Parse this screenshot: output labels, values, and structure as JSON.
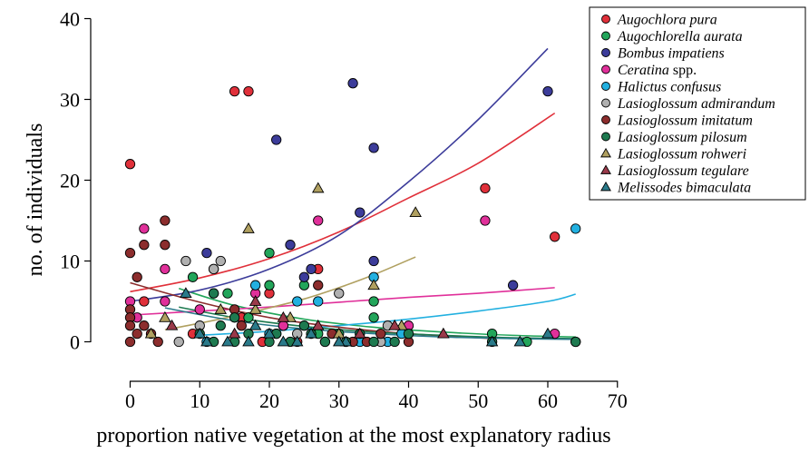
{
  "chart_data": {
    "type": "scatter",
    "xlabel": "proportion native vegetation at the most explanatory radius",
    "ylabel": "no. of individuals",
    "xlim": [
      -5,
      70
    ],
    "ylim": [
      -3,
      40
    ],
    "xticks": [
      0,
      10,
      20,
      30,
      40,
      50,
      60,
      70
    ],
    "yticks": [
      0,
      10,
      20,
      30,
      40
    ],
    "grid": false,
    "legend_position": "top-right",
    "series": [
      {
        "name": "Augochlora pura",
        "name_suffix": "",
        "color": "#e0303a",
        "marker": "circle",
        "points": [
          [
            0,
            22
          ],
          [
            15,
            31
          ],
          [
            17,
            31
          ],
          [
            51,
            19
          ],
          [
            61,
            13
          ],
          [
            20,
            6
          ],
          [
            27,
            9
          ],
          [
            16,
            3
          ],
          [
            2,
            5
          ],
          [
            9,
            1
          ],
          [
            19,
            0
          ],
          [
            24,
            0
          ]
        ],
        "fit": [
          [
            0,
            6.2
          ],
          [
            10,
            7.9
          ],
          [
            20,
            10.3
          ],
          [
            30,
            13.6
          ],
          [
            40,
            17.8
          ],
          [
            50,
            22.1
          ],
          [
            61,
            28.3
          ]
        ]
      },
      {
        "name": "Augochlorella aurata",
        "name_suffix": "",
        "color": "#22a55a",
        "marker": "circle",
        "points": [
          [
            9,
            8
          ],
          [
            20,
            11
          ],
          [
            17,
            3
          ],
          [
            20,
            7
          ],
          [
            25,
            7
          ],
          [
            35,
            5
          ],
          [
            35,
            3
          ],
          [
            52,
            1
          ],
          [
            57,
            0
          ],
          [
            64,
            0
          ],
          [
            12,
            6
          ],
          [
            14,
            6
          ],
          [
            22,
            2
          ],
          [
            27,
            1
          ],
          [
            30,
            1
          ]
        ],
        "fit": [
          [
            7,
            6.6
          ],
          [
            15,
            4.5
          ],
          [
            25,
            2.8
          ],
          [
            35,
            1.8
          ],
          [
            45,
            1.2
          ],
          [
            55,
            0.8
          ],
          [
            64,
            0.6
          ]
        ]
      },
      {
        "name": "Bombus impatiens",
        "name_suffix": "",
        "color": "#3c3c9a",
        "marker": "circle",
        "points": [
          [
            32,
            32
          ],
          [
            21,
            25
          ],
          [
            35,
            24
          ],
          [
            60,
            31
          ],
          [
            23,
            12
          ],
          [
            11,
            11
          ],
          [
            12,
            9
          ],
          [
            25,
            8
          ],
          [
            26,
            9
          ],
          [
            33,
            16
          ],
          [
            35,
            10
          ],
          [
            55,
            7
          ]
        ],
        "fit": [
          [
            0,
            5.0
          ],
          [
            10,
            6.4
          ],
          [
            20,
            9.0
          ],
          [
            30,
            13.2
          ],
          [
            40,
            19.8
          ],
          [
            50,
            27.5
          ],
          [
            60,
            36.3
          ]
        ]
      },
      {
        "name": "Ceratina",
        "name_suffix": " spp.",
        "color": "#e0309a",
        "marker": "circle",
        "points": [
          [
            2,
            14
          ],
          [
            5,
            9
          ],
          [
            5,
            5
          ],
          [
            27,
            15
          ],
          [
            51,
            15
          ],
          [
            61,
            1
          ],
          [
            40,
            2
          ],
          [
            0,
            5
          ],
          [
            1,
            3
          ],
          [
            18,
            6
          ],
          [
            22,
            2
          ],
          [
            10,
            4
          ]
        ],
        "fit": [
          [
            0,
            3.3
          ],
          [
            10,
            3.8
          ],
          [
            20,
            4.3
          ],
          [
            30,
            4.9
          ],
          [
            40,
            5.5
          ],
          [
            50,
            6.0
          ],
          [
            61,
            6.7
          ]
        ]
      },
      {
        "name": "Halictus confusus",
        "name_suffix": "",
        "color": "#22b0e0",
        "marker": "circle",
        "points": [
          [
            64,
            14
          ],
          [
            35,
            8
          ],
          [
            18,
            7
          ],
          [
            24,
            5
          ],
          [
            27,
            5
          ],
          [
            11,
            0
          ],
          [
            33,
            0
          ],
          [
            37,
            0
          ],
          [
            39,
            1
          ],
          [
            20,
            1
          ]
        ],
        "fit": [
          [
            10,
            0.8
          ],
          [
            20,
            1.3
          ],
          [
            30,
            2.0
          ],
          [
            40,
            2.8
          ],
          [
            50,
            3.8
          ],
          [
            60,
            5.0
          ],
          [
            64,
            5.9
          ]
        ]
      },
      {
        "name": "Lasioglossum admirandum",
        "name_suffix": "",
        "color": "#b0b0b0",
        "marker": "circle",
        "points": [
          [
            8,
            10
          ],
          [
            13,
            10
          ],
          [
            12,
            9
          ],
          [
            30,
            6
          ],
          [
            37,
            2
          ],
          [
            7,
            0
          ],
          [
            10,
            2
          ],
          [
            24,
            1
          ],
          [
            36,
            0
          ]
        ],
        "fit": []
      },
      {
        "name": "Lasioglossum imitatum",
        "name_suffix": "",
        "color": "#8c2d2d",
        "marker": "circle",
        "points": [
          [
            0,
            11
          ],
          [
            1,
            8
          ],
          [
            5,
            15
          ],
          [
            5,
            12
          ],
          [
            2,
            12
          ],
          [
            0,
            4
          ],
          [
            0,
            3
          ],
          [
            0,
            2
          ],
          [
            1,
            1
          ],
          [
            2,
            2
          ],
          [
            3,
            1
          ],
          [
            4,
            0
          ],
          [
            0,
            0
          ],
          [
            15,
            4
          ],
          [
            16,
            2
          ],
          [
            21,
            1
          ],
          [
            28,
            0
          ],
          [
            32,
            0
          ],
          [
            36,
            1
          ],
          [
            40,
            0
          ],
          [
            27,
            7
          ],
          [
            29,
            1
          ],
          [
            31,
            0
          ],
          [
            34,
            0
          ]
        ],
        "fit": [
          [
            0,
            7.3
          ],
          [
            10,
            4.9
          ],
          [
            20,
            3.0
          ],
          [
            30,
            1.8
          ],
          [
            40,
            1.0
          ],
          [
            52,
            0.4
          ]
        ]
      },
      {
        "name": "Lasioglossum pilosum",
        "name_suffix": "",
        "color": "#1e7a50",
        "marker": "circle",
        "points": [
          [
            10,
            1
          ],
          [
            12,
            0
          ],
          [
            13,
            2
          ],
          [
            15,
            0
          ],
          [
            17,
            1
          ],
          [
            20,
            0
          ],
          [
            21,
            1
          ],
          [
            23,
            0
          ],
          [
            25,
            2
          ],
          [
            26,
            1
          ],
          [
            28,
            0
          ],
          [
            31,
            0
          ],
          [
            33,
            1
          ],
          [
            35,
            0
          ],
          [
            38,
            0
          ],
          [
            40,
            1
          ],
          [
            52,
            0
          ],
          [
            64,
            0
          ],
          [
            12,
            6
          ],
          [
            15,
            3
          ]
        ],
        "fit": [
          [
            7,
            4.3
          ],
          [
            15,
            3.0
          ],
          [
            25,
            1.9
          ],
          [
            35,
            1.2
          ],
          [
            45,
            0.8
          ],
          [
            55,
            0.5
          ],
          [
            64,
            0.4
          ]
        ]
      },
      {
        "name": "Lasioglossum rohweri",
        "name_suffix": "",
        "color": "#b0a060",
        "marker": "triangle",
        "points": [
          [
            27,
            19
          ],
          [
            41,
            16
          ],
          [
            17,
            14
          ],
          [
            35,
            7
          ],
          [
            3,
            1
          ],
          [
            5,
            3
          ],
          [
            13,
            4
          ],
          [
            18,
            4
          ],
          [
            23,
            3
          ],
          [
            30,
            1
          ],
          [
            39,
            2
          ]
        ],
        "fit": [
          [
            5,
            1.5
          ],
          [
            10,
            2.3
          ],
          [
            15,
            3.2
          ],
          [
            20,
            4.2
          ],
          [
            25,
            5.3
          ],
          [
            30,
            6.7
          ],
          [
            35,
            8.3
          ],
          [
            41,
            10.5
          ]
        ]
      },
      {
        "name": "Lasioglossum tegulare",
        "name_suffix": "",
        "color": "#9a3a4a",
        "marker": "triangle",
        "points": [
          [
            18,
            5
          ],
          [
            22,
            3
          ],
          [
            27,
            2
          ],
          [
            38,
            2
          ],
          [
            15,
            1
          ],
          [
            6,
            2
          ],
          [
            33,
            1
          ],
          [
            45,
            1
          ]
        ],
        "fit": []
      },
      {
        "name": "Melissodes bimaculata",
        "name_suffix": "",
        "color": "#2a7a8a",
        "marker": "triangle",
        "points": [
          [
            8,
            6
          ],
          [
            10,
            1
          ],
          [
            11,
            0
          ],
          [
            14,
            0
          ],
          [
            17,
            0
          ],
          [
            20,
            1
          ],
          [
            22,
            0
          ],
          [
            26,
            1
          ],
          [
            31,
            0
          ],
          [
            52,
            0
          ],
          [
            56,
            0
          ],
          [
            60,
            1
          ],
          [
            18,
            2
          ],
          [
            24,
            0
          ],
          [
            30,
            0
          ]
        ],
        "fit": [
          [
            5,
            4.2
          ],
          [
            15,
            2.6
          ],
          [
            25,
            1.6
          ],
          [
            35,
            1.0
          ],
          [
            45,
            0.6
          ],
          [
            55,
            0.4
          ],
          [
            64,
            0.3
          ]
        ]
      }
    ]
  }
}
